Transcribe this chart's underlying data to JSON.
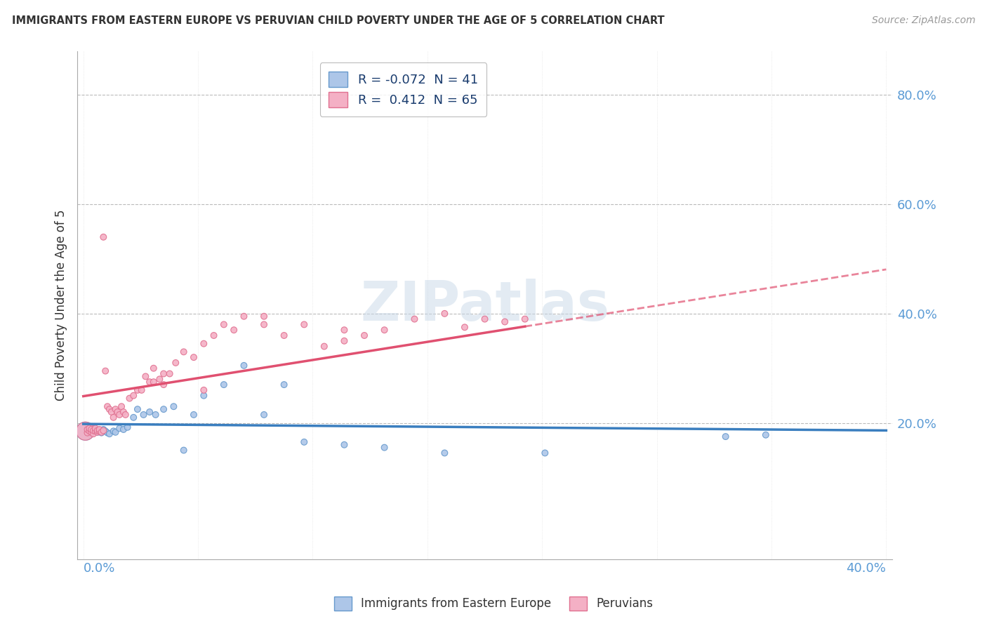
{
  "title": "IMMIGRANTS FROM EASTERN EUROPE VS PERUVIAN CHILD POVERTY UNDER THE AGE OF 5 CORRELATION CHART",
  "source": "Source: ZipAtlas.com",
  "ylabel": "Child Poverty Under the Age of 5",
  "legend_r1": "R = -0.072  N = 41",
  "legend_r2": "R =  0.412  N = 65",
  "color_blue": "#adc6e8",
  "color_blue_edge": "#6699cc",
  "color_pink": "#f4b0c5",
  "color_pink_edge": "#e07090",
  "line_blue_color": "#3a7ebf",
  "line_pink_color": "#e05070",
  "watermark_text": "ZIPatlas",
  "watermark_color": "#c8d8e8",
  "xlim": [
    0.0,
    0.4
  ],
  "ylim": [
    0.0,
    0.88
  ],
  "ytick_vals": [
    0.2,
    0.4,
    0.6,
    0.8
  ],
  "ytick_labels": [
    "20.0%",
    "40.0%",
    "60.0%",
    "80.0%"
  ],
  "blue_r": -0.072,
  "pink_r": 0.412,
  "blue_n": 41,
  "pink_n": 65,
  "blue_x": [
    0.001,
    0.002,
    0.003,
    0.003,
    0.004,
    0.005,
    0.005,
    0.006,
    0.007,
    0.008,
    0.009,
    0.01,
    0.011,
    0.012,
    0.013,
    0.015,
    0.016,
    0.018,
    0.02,
    0.022,
    0.025,
    0.027,
    0.03,
    0.033,
    0.036,
    0.04,
    0.045,
    0.05,
    0.055,
    0.06,
    0.07,
    0.08,
    0.09,
    0.1,
    0.11,
    0.13,
    0.15,
    0.18,
    0.23,
    0.32,
    0.34
  ],
  "blue_y": [
    0.185,
    0.185,
    0.18,
    0.19,
    0.185,
    0.185,
    0.19,
    0.188,
    0.183,
    0.187,
    0.182,
    0.188,
    0.185,
    0.182,
    0.18,
    0.185,
    0.183,
    0.19,
    0.188,
    0.192,
    0.21,
    0.225,
    0.215,
    0.22,
    0.215,
    0.225,
    0.23,
    0.15,
    0.215,
    0.25,
    0.27,
    0.305,
    0.215,
    0.27,
    0.165,
    0.16,
    0.155,
    0.145,
    0.145,
    0.175,
    0.178
  ],
  "blue_sizes": [
    40,
    40,
    40,
    40,
    40,
    40,
    40,
    40,
    40,
    40,
    40,
    40,
    40,
    40,
    40,
    40,
    40,
    40,
    40,
    40,
    40,
    40,
    40,
    40,
    40,
    40,
    40,
    40,
    40,
    40,
    40,
    40,
    40,
    40,
    40,
    40,
    40,
    40,
    40,
    40,
    40
  ],
  "blue_big_idx": 0,
  "blue_big_size": 350,
  "pink_x": [
    0.001,
    0.002,
    0.002,
    0.003,
    0.003,
    0.004,
    0.004,
    0.005,
    0.005,
    0.006,
    0.006,
    0.007,
    0.007,
    0.008,
    0.008,
    0.009,
    0.01,
    0.01,
    0.011,
    0.012,
    0.013,
    0.014,
    0.015,
    0.016,
    0.017,
    0.018,
    0.019,
    0.02,
    0.021,
    0.023,
    0.025,
    0.027,
    0.029,
    0.031,
    0.033,
    0.035,
    0.038,
    0.04,
    0.043,
    0.046,
    0.05,
    0.055,
    0.06,
    0.065,
    0.07,
    0.075,
    0.08,
    0.09,
    0.1,
    0.11,
    0.12,
    0.13,
    0.14,
    0.15,
    0.165,
    0.18,
    0.19,
    0.2,
    0.21,
    0.22,
    0.13,
    0.09,
    0.06,
    0.04,
    0.035
  ],
  "pink_y": [
    0.185,
    0.182,
    0.188,
    0.185,
    0.19,
    0.183,
    0.188,
    0.18,
    0.186,
    0.185,
    0.19,
    0.183,
    0.186,
    0.185,
    0.188,
    0.183,
    0.186,
    0.54,
    0.295,
    0.23,
    0.225,
    0.22,
    0.21,
    0.225,
    0.22,
    0.215,
    0.23,
    0.22,
    0.215,
    0.245,
    0.25,
    0.26,
    0.26,
    0.285,
    0.275,
    0.275,
    0.28,
    0.29,
    0.29,
    0.31,
    0.33,
    0.32,
    0.345,
    0.36,
    0.38,
    0.37,
    0.395,
    0.395,
    0.36,
    0.38,
    0.34,
    0.35,
    0.36,
    0.37,
    0.39,
    0.4,
    0.375,
    0.39,
    0.385,
    0.39,
    0.37,
    0.38,
    0.26,
    0.27,
    0.3
  ],
  "pink_sizes": [
    40,
    40,
    40,
    40,
    40,
    40,
    40,
    40,
    40,
    40,
    40,
    40,
    40,
    40,
    40,
    40,
    40,
    40,
    40,
    40,
    40,
    40,
    40,
    40,
    40,
    40,
    40,
    40,
    40,
    40,
    40,
    40,
    40,
    40,
    40,
    40,
    40,
    40,
    40,
    40,
    40,
    40,
    40,
    40,
    40,
    40,
    40,
    40,
    40,
    40,
    40,
    40,
    40,
    40,
    40,
    40,
    40,
    40,
    40,
    40,
    40,
    40,
    40,
    40,
    40
  ],
  "pink_big_idx": 0,
  "pink_big_size": 350
}
